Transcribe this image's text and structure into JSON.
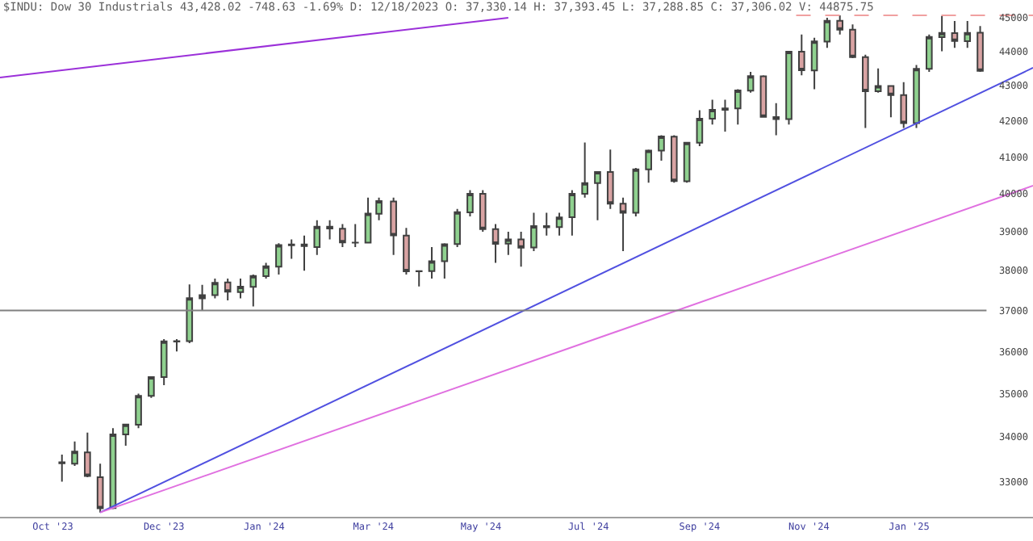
{
  "chart_data": {
    "type": "candlestick",
    "title": "$INDU: Dow 30 Industrials 43,428.02 -748.63 -1.69% D: 12/18/2023 O: 37,330.14 H: 37,393.45 L: 37,288.85 C: 37,306.02 V: 44875.75",
    "x": [
      "2023-10-06",
      "2023-10-13",
      "2023-10-20",
      "2023-10-27",
      "2023-11-03",
      "2023-11-10",
      "2023-11-17",
      "2023-11-24",
      "2023-12-01",
      "2023-12-08",
      "2023-12-15",
      "2023-12-22",
      "2023-12-29",
      "2024-01-05",
      "2024-01-12",
      "2024-01-19",
      "2024-01-26",
      "2024-02-02",
      "2024-02-09",
      "2024-02-16",
      "2024-02-23",
      "2024-03-01",
      "2024-03-08",
      "2024-03-15",
      "2024-03-22",
      "2024-03-28",
      "2024-04-05",
      "2024-04-12",
      "2024-04-19",
      "2024-04-26",
      "2024-05-03",
      "2024-05-10",
      "2024-05-17",
      "2024-05-24",
      "2024-05-31",
      "2024-06-07",
      "2024-06-14",
      "2024-06-21",
      "2024-06-28",
      "2024-07-05",
      "2024-07-12",
      "2024-07-19",
      "2024-07-26",
      "2024-08-02",
      "2024-08-09",
      "2024-08-16",
      "2024-08-23",
      "2024-08-30",
      "2024-09-06",
      "2024-09-13",
      "2024-09-20",
      "2024-09-27",
      "2024-10-04",
      "2024-10-11",
      "2024-10-18",
      "2024-10-25",
      "2024-11-01",
      "2024-11-08",
      "2024-11-15",
      "2024-11-22",
      "2024-11-29",
      "2024-12-06",
      "2024-12-13",
      "2024-12-20",
      "2024-12-27",
      "2025-01-03",
      "2025-01-10",
      "2025-01-17",
      "2025-01-24",
      "2025-01-31",
      "2025-02-07",
      "2025-02-14",
      "2025-02-21"
    ],
    "ohlc": [
      [
        33430,
        33600,
        33000,
        33407
      ],
      [
        33400,
        33900,
        33350,
        33670
      ],
      [
        33650,
        34100,
        33100,
        33127
      ],
      [
        33100,
        33400,
        32327,
        32418
      ],
      [
        32420,
        34200,
        32400,
        34061
      ],
      [
        34060,
        34300,
        33800,
        34283
      ],
      [
        34280,
        35000,
        34200,
        34947
      ],
      [
        34950,
        35400,
        34900,
        35390
      ],
      [
        35390,
        36300,
        35200,
        36245
      ],
      [
        36240,
        36300,
        36000,
        36248
      ],
      [
        36250,
        37650,
        36200,
        37305
      ],
      [
        37300,
        37640,
        37000,
        37385
      ],
      [
        37380,
        37800,
        37300,
        37690
      ],
      [
        37700,
        37800,
        37250,
        37466
      ],
      [
        37460,
        37800,
        37300,
        37593
      ],
      [
        37590,
        37900,
        37100,
        37863
      ],
      [
        37860,
        38200,
        37800,
        38109
      ],
      [
        38100,
        38700,
        37900,
        38654
      ],
      [
        38650,
        38800,
        38300,
        38671
      ],
      [
        38670,
        38900,
        38000,
        38628
      ],
      [
        38600,
        39300,
        38400,
        39131
      ],
      [
        39130,
        39300,
        38800,
        39087
      ],
      [
        39080,
        39200,
        38600,
        38723
      ],
      [
        38720,
        39200,
        38600,
        38715
      ],
      [
        38720,
        39900,
        38700,
        39476
      ],
      [
        39470,
        39900,
        39300,
        39807
      ],
      [
        39800,
        39900,
        38400,
        38904
      ],
      [
        38900,
        39100,
        37900,
        37983
      ],
      [
        37980,
        38000,
        37600,
        37986
      ],
      [
        37990,
        38600,
        37800,
        38240
      ],
      [
        38240,
        38700,
        37800,
        38676
      ],
      [
        38680,
        39600,
        38600,
        39513
      ],
      [
        39510,
        40100,
        39400,
        40004
      ],
      [
        40000,
        40100,
        39000,
        39070
      ],
      [
        39070,
        39200,
        38200,
        38686
      ],
      [
        38690,
        39000,
        38400,
        38799
      ],
      [
        38800,
        39000,
        38100,
        38589
      ],
      [
        38590,
        39500,
        38500,
        39150
      ],
      [
        39150,
        39500,
        38900,
        39119
      ],
      [
        39120,
        39500,
        38900,
        39376
      ],
      [
        39380,
        40100,
        38900,
        40001
      ],
      [
        40000,
        41400,
        39900,
        40288
      ],
      [
        40290,
        40600,
        39300,
        40589
      ],
      [
        40590,
        41200,
        39600,
        39737
      ],
      [
        39740,
        39900,
        38500,
        39498
      ],
      [
        39500,
        40700,
        39400,
        40660
      ],
      [
        40660,
        41200,
        40300,
        41175
      ],
      [
        41175,
        41600,
        40900,
        41563
      ],
      [
        41560,
        41600,
        40300,
        40345
      ],
      [
        40340,
        41400,
        40300,
        41394
      ],
      [
        41390,
        42300,
        41300,
        42063
      ],
      [
        42060,
        42600,
        41900,
        42313
      ],
      [
        42310,
        42600,
        41700,
        42352
      ],
      [
        42350,
        42900,
        41900,
        42864
      ],
      [
        42860,
        43400,
        42800,
        43275
      ],
      [
        43270,
        43300,
        42100,
        42114
      ],
      [
        42110,
        42500,
        41600,
        42052
      ],
      [
        42050,
        44000,
        41900,
        43989
      ],
      [
        43990,
        44500,
        43300,
        43445
      ],
      [
        43440,
        44400,
        42900,
        44296
      ],
      [
        44290,
        45000,
        44100,
        44910
      ],
      [
        44910,
        45073,
        44500,
        44642
      ],
      [
        44640,
        44800,
        43800,
        43828
      ],
      [
        43830,
        43900,
        41800,
        42840
      ],
      [
        42840,
        43500,
        42800,
        42992
      ],
      [
        42990,
        43000,
        42100,
        42732
      ],
      [
        42730,
        43100,
        41800,
        41938
      ],
      [
        41940,
        43600,
        41800,
        43488
      ],
      [
        43490,
        44500,
        43400,
        44424
      ],
      [
        44420,
        45054,
        44000,
        44544
      ],
      [
        44540,
        44900,
        44100,
        44303
      ],
      [
        44300,
        44900,
        44100,
        44546
      ],
      [
        44550,
        44750,
        43400,
        43428
      ]
    ],
    "series": [
      {
        "type": "line",
        "x": [
          "2023-09-02",
          "2024-06-07"
        ],
        "values": [
          43237,
          45000
        ],
        "color": "#9b30d9"
      },
      {
        "type": "line",
        "x": [
          "2023-10-27",
          "2025-03-22"
        ],
        "values": [
          32327,
          43518
        ],
        "color": "#5050e0"
      },
      {
        "type": "line",
        "x": [
          "2023-10-27",
          "2025-03-22"
        ],
        "values": [
          32327,
          40219
        ],
        "color": "#e070e0"
      },
      {
        "type": "line",
        "x": [
          "2024-11-12",
          "2025-03-22"
        ],
        "values": [
          45073,
          45073
        ],
        "color": "#f0a0a0",
        "line_style": "dashed"
      }
    ],
    "ref_lines": [
      {
        "axis": "y",
        "value": 37000,
        "color": "#808080"
      }
    ],
    "log": "y",
    "xlim": [
      "2023-09-02",
      "2025-03-22"
    ],
    "xticks": [
      {
        "value": "2023-10-01",
        "label": "Oct '23"
      },
      {
        "value": "2023-12-01",
        "label": "Dec '23"
      },
      {
        "value": "2024-01-25",
        "label": "Jan '24"
      },
      {
        "value": "2024-03-25",
        "label": "Mar '24"
      },
      {
        "value": "2024-05-23",
        "label": "May '24"
      },
      {
        "value": "2024-07-21",
        "label": "Jul '24"
      },
      {
        "value": "2024-09-20",
        "label": "Sep '24"
      },
      {
        "value": "2024-11-19",
        "label": "Nov '24"
      },
      {
        "value": "2025-01-13",
        "label": "Jan '25"
      }
    ],
    "ylim": [
      32234,
      45536
    ],
    "yticks": [
      33000,
      34000,
      35000,
      36000,
      37000,
      38000,
      39000,
      40000,
      41000,
      42000,
      43000,
      44000,
      45000
    ]
  }
}
